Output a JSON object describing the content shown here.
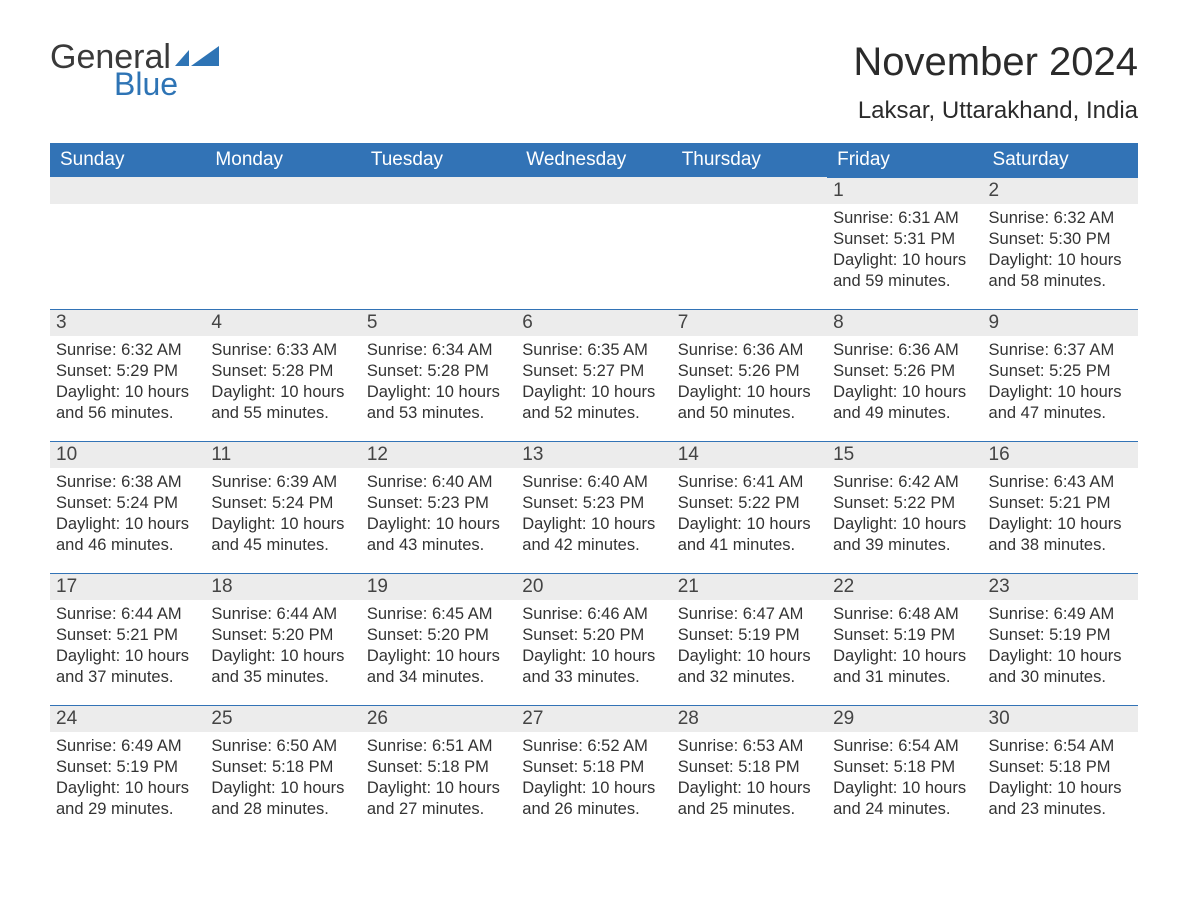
{
  "brand": {
    "part1": "General",
    "part2": "Blue",
    "color_accent": "#2e74b5",
    "color_text": "#3a3a3a"
  },
  "title": "November 2024",
  "location": "Laksar, Uttarakhand, India",
  "header_bg": "#3273b6",
  "header_fg": "#ffffff",
  "row_stripe": "#ececec",
  "row_border": "#3273b6",
  "body_text_color": "#333333",
  "font_family": "Arial, Helvetica, sans-serif",
  "day_headers": [
    "Sunday",
    "Monday",
    "Tuesday",
    "Wednesday",
    "Thursday",
    "Friday",
    "Saturday"
  ],
  "labels": {
    "sunrise": "Sunrise",
    "sunset": "Sunset",
    "daylight": "Daylight"
  },
  "blank_leading_cells": 5,
  "days": [
    {
      "n": 1,
      "sunrise": "6:31 AM",
      "sunset": "5:31 PM",
      "day_h": 10,
      "day_m": 59
    },
    {
      "n": 2,
      "sunrise": "6:32 AM",
      "sunset": "5:30 PM",
      "day_h": 10,
      "day_m": 58
    },
    {
      "n": 3,
      "sunrise": "6:32 AM",
      "sunset": "5:29 PM",
      "day_h": 10,
      "day_m": 56
    },
    {
      "n": 4,
      "sunrise": "6:33 AM",
      "sunset": "5:28 PM",
      "day_h": 10,
      "day_m": 55
    },
    {
      "n": 5,
      "sunrise": "6:34 AM",
      "sunset": "5:28 PM",
      "day_h": 10,
      "day_m": 53
    },
    {
      "n": 6,
      "sunrise": "6:35 AM",
      "sunset": "5:27 PM",
      "day_h": 10,
      "day_m": 52
    },
    {
      "n": 7,
      "sunrise": "6:36 AM",
      "sunset": "5:26 PM",
      "day_h": 10,
      "day_m": 50
    },
    {
      "n": 8,
      "sunrise": "6:36 AM",
      "sunset": "5:26 PM",
      "day_h": 10,
      "day_m": 49
    },
    {
      "n": 9,
      "sunrise": "6:37 AM",
      "sunset": "5:25 PM",
      "day_h": 10,
      "day_m": 47
    },
    {
      "n": 10,
      "sunrise": "6:38 AM",
      "sunset": "5:24 PM",
      "day_h": 10,
      "day_m": 46
    },
    {
      "n": 11,
      "sunrise": "6:39 AM",
      "sunset": "5:24 PM",
      "day_h": 10,
      "day_m": 45
    },
    {
      "n": 12,
      "sunrise": "6:40 AM",
      "sunset": "5:23 PM",
      "day_h": 10,
      "day_m": 43
    },
    {
      "n": 13,
      "sunrise": "6:40 AM",
      "sunset": "5:23 PM",
      "day_h": 10,
      "day_m": 42
    },
    {
      "n": 14,
      "sunrise": "6:41 AM",
      "sunset": "5:22 PM",
      "day_h": 10,
      "day_m": 41
    },
    {
      "n": 15,
      "sunrise": "6:42 AM",
      "sunset": "5:22 PM",
      "day_h": 10,
      "day_m": 39
    },
    {
      "n": 16,
      "sunrise": "6:43 AM",
      "sunset": "5:21 PM",
      "day_h": 10,
      "day_m": 38
    },
    {
      "n": 17,
      "sunrise": "6:44 AM",
      "sunset": "5:21 PM",
      "day_h": 10,
      "day_m": 37
    },
    {
      "n": 18,
      "sunrise": "6:44 AM",
      "sunset": "5:20 PM",
      "day_h": 10,
      "day_m": 35
    },
    {
      "n": 19,
      "sunrise": "6:45 AM",
      "sunset": "5:20 PM",
      "day_h": 10,
      "day_m": 34
    },
    {
      "n": 20,
      "sunrise": "6:46 AM",
      "sunset": "5:20 PM",
      "day_h": 10,
      "day_m": 33
    },
    {
      "n": 21,
      "sunrise": "6:47 AM",
      "sunset": "5:19 PM",
      "day_h": 10,
      "day_m": 32
    },
    {
      "n": 22,
      "sunrise": "6:48 AM",
      "sunset": "5:19 PM",
      "day_h": 10,
      "day_m": 31
    },
    {
      "n": 23,
      "sunrise": "6:49 AM",
      "sunset": "5:19 PM",
      "day_h": 10,
      "day_m": 30
    },
    {
      "n": 24,
      "sunrise": "6:49 AM",
      "sunset": "5:19 PM",
      "day_h": 10,
      "day_m": 29
    },
    {
      "n": 25,
      "sunrise": "6:50 AM",
      "sunset": "5:18 PM",
      "day_h": 10,
      "day_m": 28
    },
    {
      "n": 26,
      "sunrise": "6:51 AM",
      "sunset": "5:18 PM",
      "day_h": 10,
      "day_m": 27
    },
    {
      "n": 27,
      "sunrise": "6:52 AM",
      "sunset": "5:18 PM",
      "day_h": 10,
      "day_m": 26
    },
    {
      "n": 28,
      "sunrise": "6:53 AM",
      "sunset": "5:18 PM",
      "day_h": 10,
      "day_m": 25
    },
    {
      "n": 29,
      "sunrise": "6:54 AM",
      "sunset": "5:18 PM",
      "day_h": 10,
      "day_m": 24
    },
    {
      "n": 30,
      "sunrise": "6:54 AM",
      "sunset": "5:18 PM",
      "day_h": 10,
      "day_m": 23
    }
  ]
}
